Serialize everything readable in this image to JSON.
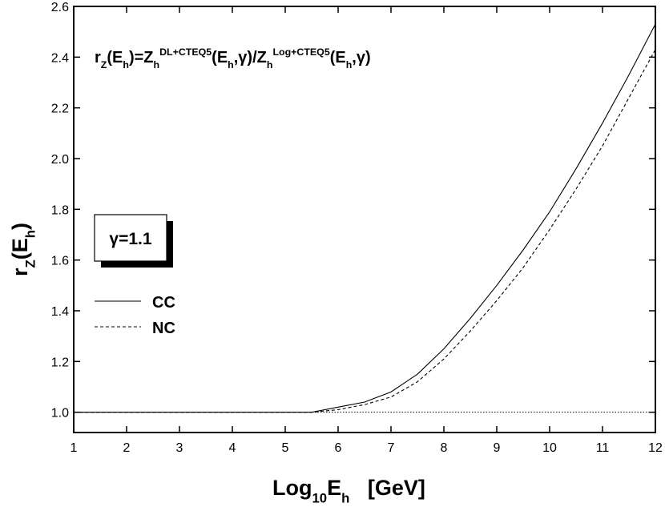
{
  "chart_data": {
    "type": "line",
    "annotation": [
      {
        "text": "r",
        "pos": "base"
      },
      {
        "text": "Z",
        "pos": "sub"
      },
      {
        "text": "(E",
        "pos": "base"
      },
      {
        "text": "h",
        "pos": "sub"
      },
      {
        "text": ")=Z",
        "pos": "base"
      },
      {
        "text": "h",
        "pos": "sub"
      },
      {
        "text": "DL+CTEQ5",
        "pos": "sup"
      },
      {
        "text": "(E",
        "pos": "base"
      },
      {
        "text": "h",
        "pos": "sub"
      },
      {
        "text": ",γ)/Z",
        "pos": "base"
      },
      {
        "text": "h",
        "pos": "sub"
      },
      {
        "text": "Log+CTEQ5",
        "pos": "sup"
      },
      {
        "text": "(E",
        "pos": "base"
      },
      {
        "text": "h",
        "pos": "sub"
      },
      {
        "text": ",γ)",
        "pos": "base"
      }
    ],
    "box_label": "γ=1.1",
    "xlabel": [
      {
        "text": "Log",
        "pos": "base"
      },
      {
        "text": "10",
        "pos": "sub"
      },
      {
        "text": "E",
        "pos": "base"
      },
      {
        "text": "h",
        "pos": "sub"
      },
      {
        "text": "   [GeV]",
        "pos": "base"
      }
    ],
    "ylabel": [
      {
        "text": "r",
        "pos": "base"
      },
      {
        "text": "Z",
        "pos": "sub"
      },
      {
        "text": "(E",
        "pos": "base"
      },
      {
        "text": "h",
        "pos": "sub"
      },
      {
        "text": ")",
        "pos": "base"
      }
    ],
    "x": [
      1,
      2,
      3,
      4,
      5,
      5.5,
      6,
      6.5,
      7,
      7.5,
      8,
      8.5,
      9,
      9.5,
      10,
      10.5,
      11,
      11.5,
      12
    ],
    "series": [
      {
        "name": "CC",
        "color": "#000000",
        "style": "solid",
        "values": [
          1.0,
          1.0,
          1.0,
          1.0,
          1.0,
          1.0,
          1.02,
          1.04,
          1.08,
          1.15,
          1.25,
          1.37,
          1.5,
          1.64,
          1.79,
          1.96,
          2.14,
          2.33,
          2.53
        ]
      },
      {
        "name": "NC",
        "color": "#000000",
        "style": "dashed",
        "values": [
          1.0,
          1.0,
          1.0,
          1.0,
          1.0,
          1.0,
          1.01,
          1.03,
          1.06,
          1.12,
          1.21,
          1.32,
          1.44,
          1.57,
          1.72,
          1.88,
          2.05,
          2.24,
          2.43
        ]
      }
    ],
    "reference_line": 1.0,
    "xlim": [
      1,
      12
    ],
    "ylim": [
      0.92,
      2.6
    ],
    "xticks": [
      1,
      2,
      3,
      4,
      5,
      6,
      7,
      8,
      9,
      10,
      11,
      12
    ],
    "yticks": [
      {
        "value": 1.0,
        "label": "1.0"
      },
      1.2,
      1.4,
      1.6,
      1.8,
      {
        "value": 2.0,
        "label": "2.0"
      },
      2.2,
      2.4,
      2.6
    ],
    "legend": "left"
  }
}
